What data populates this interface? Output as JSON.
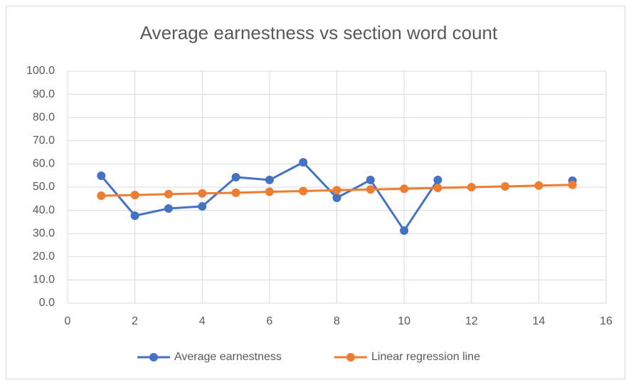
{
  "chart_data": {
    "type": "line",
    "title": "Average earnestness vs section word count",
    "x": [
      1,
      2,
      3,
      4,
      5,
      6,
      7,
      8,
      9,
      10,
      11,
      12,
      13,
      14,
      15
    ],
    "series": [
      {
        "name": "Average earnestness",
        "color": "#4472c4",
        "values": [
          54.9,
          37.7,
          40.8,
          41.7,
          54.3,
          53.1,
          60.7,
          45.4,
          53.1,
          31.3,
          53.1,
          null,
          null,
          null,
          52.8
        ]
      },
      {
        "name": "Linear regression line",
        "color": "#ed7d31",
        "values": [
          46.3,
          46.6,
          47.0,
          47.3,
          47.6,
          48.0,
          48.3,
          48.7,
          49.0,
          49.3,
          49.7,
          50.0,
          50.3,
          50.7,
          51.0
        ]
      }
    ],
    "xlim": [
      0,
      16
    ],
    "xticks": [
      0,
      2,
      4,
      6,
      8,
      10,
      12,
      14,
      16
    ],
    "ylim": [
      0,
      100
    ],
    "yticks": [
      {
        "value": 0,
        "label": "0.0"
      },
      {
        "value": 10,
        "label": "10.0"
      },
      {
        "value": 20,
        "label": "20.0"
      },
      {
        "value": 30,
        "label": "30.0"
      },
      {
        "value": 40,
        "label": "40.0"
      },
      {
        "value": 50,
        "label": "50.0"
      },
      {
        "value": 60,
        "label": "60.0"
      },
      {
        "value": 70,
        "label": "70.0"
      },
      {
        "value": 80,
        "label": "80.0"
      },
      {
        "value": 90,
        "label": "90.0"
      },
      {
        "value": 100,
        "label": "100.0"
      }
    ],
    "grid": true,
    "legend": "bottom"
  }
}
